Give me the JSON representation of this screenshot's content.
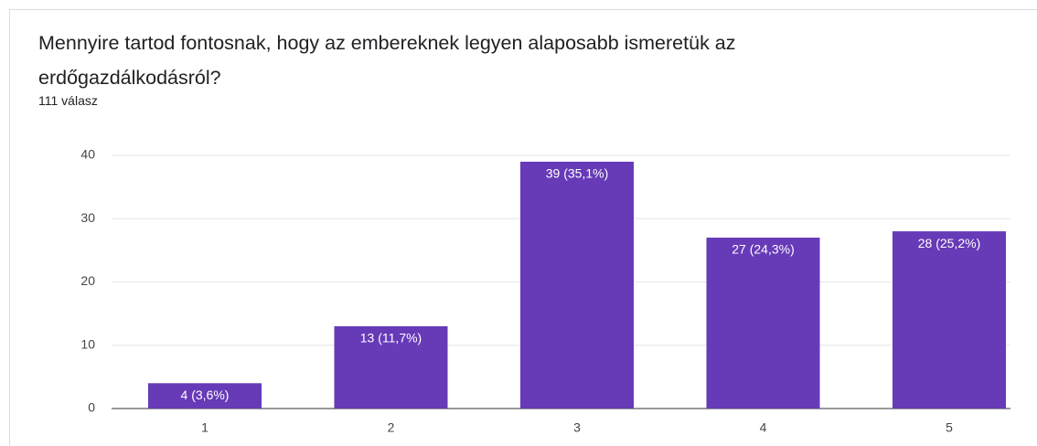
{
  "chart_data": {
    "type": "bar",
    "title": "Mennyire tartod fontosnak, hogy az embereknek legyen alaposabb ismeretük az erdőgazdálkodásról?",
    "subtitle": "111 válasz",
    "categories": [
      "1",
      "2",
      "3",
      "4",
      "5"
    ],
    "values": [
      4,
      13,
      39,
      27,
      28
    ],
    "value_labels": [
      "4 (3,6%)",
      "13 (11,7%)",
      "39 (35,1%)",
      "27 (24,3%)",
      "28 (25,2%)"
    ],
    "color": "#673ab7",
    "ylim": [
      0,
      40
    ],
    "yticks": [
      0,
      10,
      20,
      30,
      40
    ],
    "grid": true
  }
}
